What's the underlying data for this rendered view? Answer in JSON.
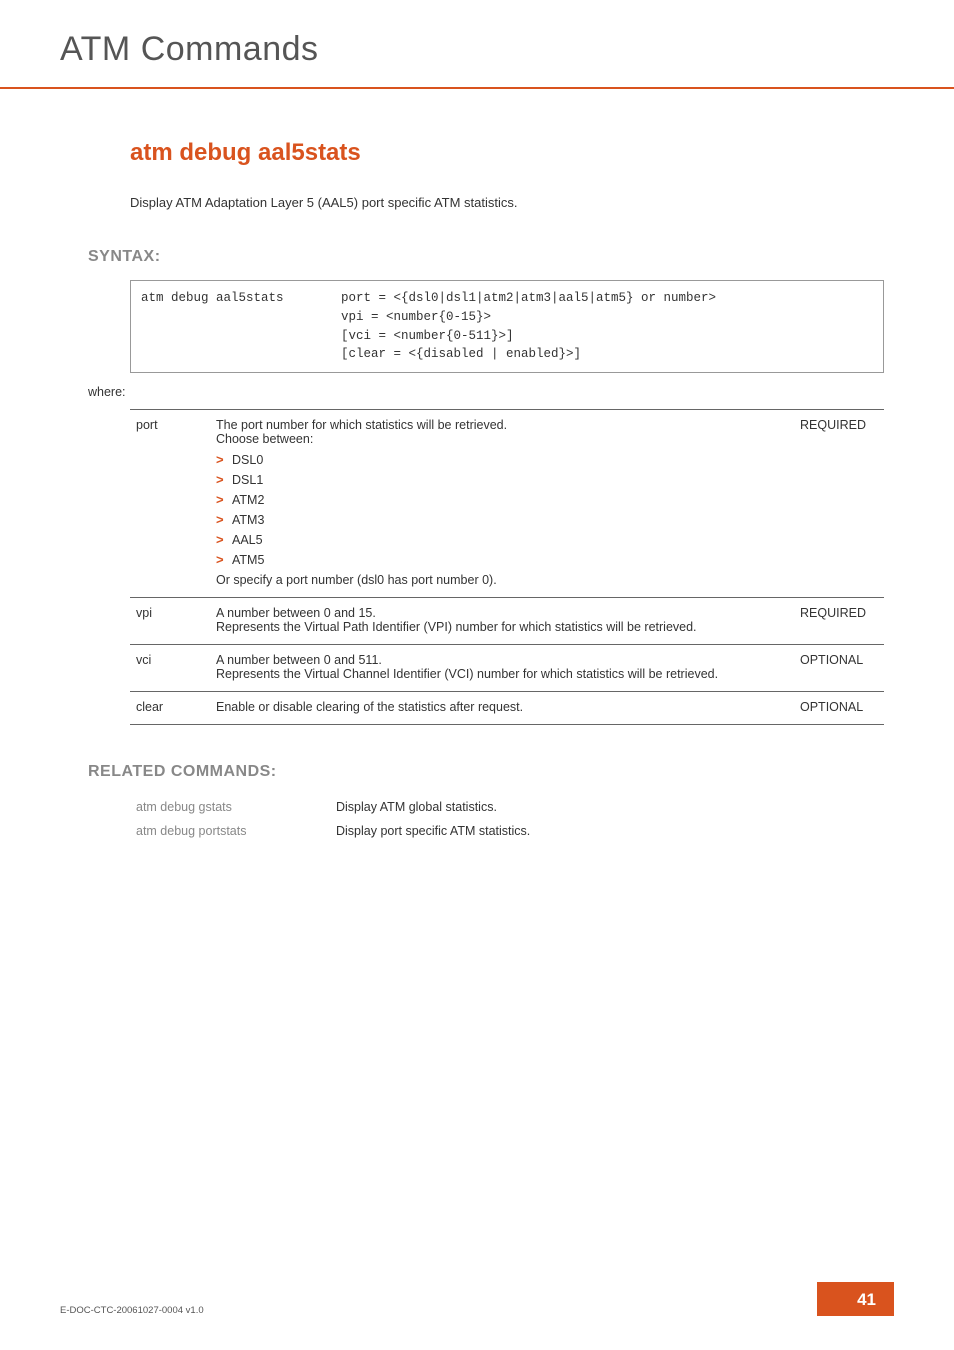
{
  "header": {
    "title": "ATM Commands"
  },
  "command": {
    "name": "atm debug aal5stats",
    "description": "Display ATM Adaptation Layer 5 (AAL5) port specific ATM statistics."
  },
  "syntax": {
    "label": "SYNTAX:",
    "cmd": "atm debug aal5stats",
    "args_lines": [
      "port = <{dsl0|dsl1|atm2|atm3|aal5|atm5} or number>",
      "vpi = <number{0-15}>",
      "[vci = <number{0-511}>]",
      "[clear = <{disabled | enabled}>]"
    ],
    "where": "where:"
  },
  "params": [
    {
      "name": "port",
      "desc_intro": "The port number for which statistics will be retrieved.",
      "choose_label": "Choose between:",
      "options": [
        "DSL0",
        "DSL1",
        "ATM2",
        "ATM3",
        "AAL5",
        "ATM5"
      ],
      "desc_outro": "Or specify a port number (dsl0 has port number 0).",
      "req": "REQUIRED"
    },
    {
      "name": "vpi",
      "desc": "A number between 0 and 15.\nRepresents the Virtual Path Identifier (VPI) number for which statistics will be retrieved.",
      "req": "REQUIRED"
    },
    {
      "name": "vci",
      "desc": "A number between 0 and 511.\nRepresents the Virtual Channel Identifier (VCI) number for which statistics will be retrieved.",
      "req": "OPTIONAL"
    },
    {
      "name": "clear",
      "desc": "Enable or disable clearing of the statistics after request.",
      "req": "OPTIONAL"
    }
  ],
  "related": {
    "label": "RELATED COMMANDS:",
    "items": [
      {
        "cmd": "atm debug gstats",
        "desc": "Display ATM global statistics."
      },
      {
        "cmd": "atm debug portstats",
        "desc": "Display port specific ATM statistics."
      }
    ]
  },
  "footer": {
    "doc_id": "E-DOC-CTC-20061027-0004 v1.0",
    "page_num": "41"
  },
  "colors": {
    "accent": "#d9531e",
    "muted": "#888888",
    "text": "#333333"
  }
}
